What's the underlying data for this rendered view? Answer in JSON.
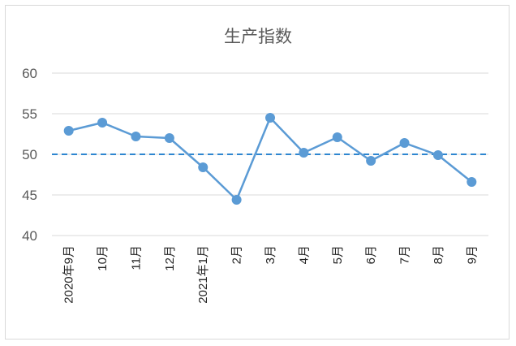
{
  "chart_data": {
    "type": "line",
    "title": "生产指数",
    "xlabel": "",
    "ylabel": "",
    "ylim": [
      40,
      60
    ],
    "yticks": [
      40,
      45,
      50,
      55,
      60
    ],
    "grid": true,
    "categories": [
      "2020年9月",
      "10月",
      "11月",
      "12月",
      "2021年1月",
      "2月",
      "3月",
      "4月",
      "5月",
      "6月",
      "7月",
      "8月",
      "9月"
    ],
    "series": [
      {
        "values": [
          52.9,
          53.9,
          52.2,
          52.0,
          48.4,
          44.4,
          54.5,
          50.2,
          52.1,
          49.2,
          51.4,
          49.9,
          46.6
        ]
      }
    ],
    "reference_line": {
      "value": 50,
      "style": "dashed"
    },
    "colors": {
      "series": "#5b9bd5",
      "reference": "#2e86d0",
      "grid": "#d9d9d9"
    }
  }
}
